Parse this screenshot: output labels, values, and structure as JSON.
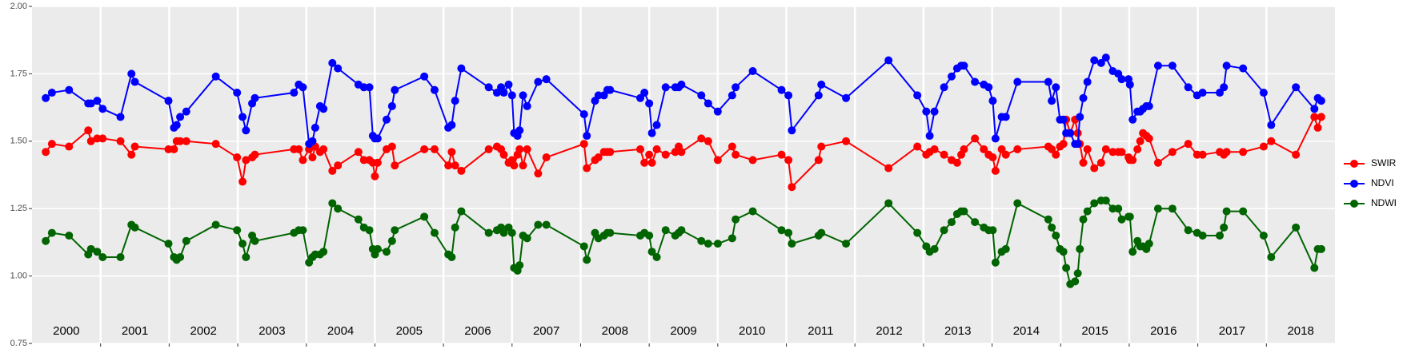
{
  "chart_data": {
    "type": "line",
    "x": [
      2000.2,
      2000.29,
      2000.54,
      2000.82,
      2000.86,
      2000.95,
      2001.03,
      2001.29,
      2001.45,
      2001.5,
      2001.99,
      2002.07,
      2002.11,
      2002.16,
      2002.25,
      2002.68,
      2002.99,
      2003.07,
      2003.12,
      2003.21,
      2003.25,
      2003.82,
      2003.89,
      2003.95,
      2004.04,
      2004.09,
      2004.13,
      2004.2,
      2004.25,
      2004.38,
      2004.46,
      2004.76,
      2004.84,
      2004.92,
      2004.97,
      2005.0,
      2005.04,
      2005.17,
      2005.25,
      2005.29,
      2005.72,
      2005.87,
      2006.07,
      2006.12,
      2006.17,
      2006.26,
      2006.66,
      2006.78,
      2006.84,
      2006.88,
      2006.95,
      2007.0,
      2007.03,
      2007.08,
      2007.11,
      2007.16,
      2007.22,
      2007.38,
      2007.5,
      2008.05,
      2008.09,
      2008.21,
      2008.26,
      2008.34,
      2008.39,
      2008.43,
      2008.87,
      2008.93,
      2009.0,
      2009.04,
      2009.11,
      2009.24,
      2009.38,
      2009.43,
      2009.47,
      2009.76,
      2009.86,
      2010.0,
      2010.21,
      2010.26,
      2010.51,
      2010.93,
      2011.03,
      2011.08,
      2011.47,
      2011.51,
      2011.87,
      2012.49,
      2012.91,
      2013.04,
      2013.09,
      2013.16,
      2013.3,
      2013.41,
      2013.49,
      2013.55,
      2013.59,
      2013.75,
      2013.88,
      2013.95,
      2014.01,
      2014.05,
      2014.14,
      2014.2,
      2014.37,
      2014.82,
      2014.87,
      2014.93,
      2014.99,
      2015.04,
      2015.08,
      2015.14,
      2015.21,
      2015.25,
      2015.28,
      2015.33,
      2015.39,
      2015.49,
      2015.59,
      2015.66,
      2015.76,
      2015.84,
      2015.89,
      2015.99,
      2016.01,
      2016.05,
      2016.12,
      2016.16,
      2016.2,
      2016.25,
      2016.29,
      2016.42,
      2016.63,
      2016.86,
      2016.99,
      2017.07,
      2017.32,
      2017.38,
      2017.42,
      2017.66,
      2017.96,
      2018.07,
      2018.43,
      2018.7,
      2018.75,
      2018.8
    ],
    "series": [
      {
        "name": "SWIR",
        "color": "#ff0000",
        "values": [
          1.46,
          1.49,
          1.48,
          1.54,
          1.5,
          1.51,
          1.51,
          1.5,
          1.45,
          1.48,
          1.47,
          1.47,
          1.5,
          1.5,
          1.5,
          1.49,
          1.44,
          1.35,
          1.43,
          1.44,
          1.45,
          1.47,
          1.47,
          1.43,
          1.47,
          1.44,
          1.48,
          1.46,
          1.47,
          1.39,
          1.41,
          1.46,
          1.43,
          1.43,
          1.42,
          1.37,
          1.42,
          1.47,
          1.48,
          1.41,
          1.47,
          1.47,
          1.41,
          1.46,
          1.41,
          1.39,
          1.47,
          1.48,
          1.47,
          1.45,
          1.42,
          1.43,
          1.41,
          1.45,
          1.47,
          1.41,
          1.47,
          1.38,
          1.44,
          1.49,
          1.4,
          1.43,
          1.44,
          1.46,
          1.46,
          1.46,
          1.47,
          1.42,
          1.45,
          1.42,
          1.47,
          1.45,
          1.46,
          1.48,
          1.46,
          1.51,
          1.5,
          1.43,
          1.48,
          1.45,
          1.43,
          1.45,
          1.43,
          1.33,
          1.43,
          1.48,
          1.5,
          1.4,
          1.48,
          1.45,
          1.46,
          1.47,
          1.45,
          1.43,
          1.42,
          1.45,
          1.47,
          1.51,
          1.47,
          1.45,
          1.44,
          1.39,
          1.47,
          1.45,
          1.47,
          1.48,
          1.47,
          1.45,
          1.48,
          1.49,
          1.58,
          1.53,
          1.58,
          1.53,
          1.49,
          1.42,
          1.47,
          1.4,
          1.42,
          1.47,
          1.46,
          1.46,
          1.46,
          1.44,
          1.43,
          1.43,
          1.47,
          1.5,
          1.53,
          1.52,
          1.51,
          1.42,
          1.46,
          1.49,
          1.45,
          1.45,
          1.46,
          1.45,
          1.46,
          1.46,
          1.48,
          1.5,
          1.45,
          1.59,
          1.55,
          1.59
        ]
      },
      {
        "name": "NDVI",
        "color": "#0000ff",
        "values": [
          1.66,
          1.68,
          1.69,
          1.64,
          1.64,
          1.65,
          1.62,
          1.59,
          1.75,
          1.72,
          1.65,
          1.55,
          1.56,
          1.59,
          1.61,
          1.74,
          1.68,
          1.59,
          1.54,
          1.64,
          1.66,
          1.68,
          1.71,
          1.7,
          1.49,
          1.5,
          1.55,
          1.63,
          1.62,
          1.79,
          1.77,
          1.71,
          1.7,
          1.7,
          1.52,
          1.51,
          1.51,
          1.58,
          1.63,
          1.69,
          1.74,
          1.69,
          1.55,
          1.56,
          1.65,
          1.77,
          1.7,
          1.68,
          1.7,
          1.68,
          1.71,
          1.67,
          1.53,
          1.52,
          1.54,
          1.67,
          1.63,
          1.72,
          1.73,
          1.6,
          1.52,
          1.65,
          1.67,
          1.67,
          1.69,
          1.69,
          1.66,
          1.68,
          1.64,
          1.53,
          1.56,
          1.7,
          1.7,
          1.7,
          1.71,
          1.67,
          1.64,
          1.61,
          1.67,
          1.7,
          1.76,
          1.69,
          1.67,
          1.54,
          1.67,
          1.71,
          1.66,
          1.8,
          1.67,
          1.61,
          1.52,
          1.61,
          1.7,
          1.74,
          1.77,
          1.78,
          1.78,
          1.72,
          1.71,
          1.7,
          1.65,
          1.51,
          1.59,
          1.59,
          1.72,
          1.72,
          1.65,
          1.7,
          1.58,
          1.58,
          1.53,
          1.53,
          1.49,
          1.49,
          1.59,
          1.66,
          1.72,
          1.8,
          1.79,
          1.81,
          1.76,
          1.75,
          1.73,
          1.73,
          1.71,
          1.58,
          1.61,
          1.61,
          1.62,
          1.63,
          1.63,
          1.78,
          1.78,
          1.7,
          1.67,
          1.68,
          1.68,
          1.7,
          1.78,
          1.77,
          1.68,
          1.56,
          1.7,
          1.62,
          1.66,
          1.65
        ]
      },
      {
        "name": "NDWI",
        "color": "#006400",
        "values": [
          1.13,
          1.16,
          1.15,
          1.08,
          1.1,
          1.09,
          1.07,
          1.07,
          1.19,
          1.18,
          1.12,
          1.07,
          1.06,
          1.07,
          1.13,
          1.19,
          1.17,
          1.12,
          1.07,
          1.15,
          1.13,
          1.16,
          1.17,
          1.17,
          1.05,
          1.07,
          1.08,
          1.08,
          1.09,
          1.27,
          1.25,
          1.21,
          1.18,
          1.17,
          1.1,
          1.08,
          1.1,
          1.09,
          1.13,
          1.17,
          1.22,
          1.16,
          1.08,
          1.07,
          1.18,
          1.24,
          1.16,
          1.17,
          1.18,
          1.16,
          1.18,
          1.16,
          1.03,
          1.02,
          1.04,
          1.15,
          1.14,
          1.19,
          1.19,
          1.11,
          1.06,
          1.16,
          1.14,
          1.15,
          1.16,
          1.16,
          1.15,
          1.16,
          1.15,
          1.09,
          1.07,
          1.17,
          1.15,
          1.16,
          1.17,
          1.13,
          1.12,
          1.12,
          1.14,
          1.21,
          1.24,
          1.17,
          1.16,
          1.12,
          1.15,
          1.16,
          1.12,
          1.27,
          1.16,
          1.11,
          1.09,
          1.1,
          1.17,
          1.2,
          1.23,
          1.24,
          1.24,
          1.2,
          1.18,
          1.17,
          1.17,
          1.05,
          1.09,
          1.1,
          1.27,
          1.21,
          1.18,
          1.15,
          1.1,
          1.09,
          1.03,
          0.97,
          0.98,
          1.01,
          1.1,
          1.21,
          1.24,
          1.27,
          1.28,
          1.28,
          1.25,
          1.25,
          1.21,
          1.22,
          1.22,
          1.09,
          1.13,
          1.11,
          1.11,
          1.1,
          1.12,
          1.25,
          1.25,
          1.17,
          1.16,
          1.15,
          1.15,
          1.18,
          1.24,
          1.24,
          1.15,
          1.07,
          1.18,
          1.03,
          1.1,
          1.1
        ]
      }
    ],
    "xlim": [
      2000,
      2019
    ],
    "xticks": [
      {
        "value": 2000.5,
        "label": "2000"
      },
      {
        "value": 2001.5,
        "label": "2001"
      },
      {
        "value": 2002.5,
        "label": "2002"
      },
      {
        "value": 2003.5,
        "label": "2003"
      },
      {
        "value": 2004.5,
        "label": "2004"
      },
      {
        "value": 2005.5,
        "label": "2005"
      },
      {
        "value": 2006.5,
        "label": "2006"
      },
      {
        "value": 2007.5,
        "label": "2007"
      },
      {
        "value": 2008.5,
        "label": "2008"
      },
      {
        "value": 2009.5,
        "label": "2009"
      },
      {
        "value": 2010.5,
        "label": "2010"
      },
      {
        "value": 2011.5,
        "label": "2011"
      },
      {
        "value": 2012.5,
        "label": "2012"
      },
      {
        "value": 2013.5,
        "label": "2013"
      },
      {
        "value": 2014.5,
        "label": "2014"
      },
      {
        "value": 2015.5,
        "label": "2015"
      },
      {
        "value": 2016.5,
        "label": "2016"
      },
      {
        "value": 2017.5,
        "label": "2017"
      },
      {
        "value": 2018.5,
        "label": "2018"
      }
    ],
    "xbreaks": [
      2001,
      2002,
      2003,
      2004,
      2005,
      2006,
      2007,
      2008,
      2009,
      2010,
      2011,
      2012,
      2013,
      2014,
      2015,
      2016,
      2017,
      2018
    ],
    "ylim": [
      0.75,
      2
    ],
    "yticks": [
      0.75,
      {
        "value": 1,
        "label": "1.00"
      },
      {
        "value": 1.25,
        "label": "1.25"
      },
      {
        "value": 1.5,
        "label": "1.50"
      },
      1.75,
      {
        "value": 2,
        "label": "2.00"
      }
    ],
    "grid": true,
    "legend": "right"
  }
}
